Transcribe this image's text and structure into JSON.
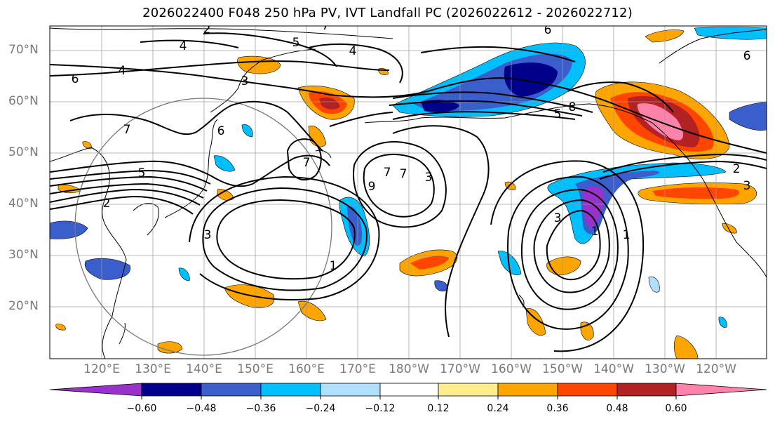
{
  "title": "2026022400 F048 250 hPa PV, IVT Landfall PC (2026022612 - 2026022712)",
  "lat_labels": [
    "70°N",
    "60°N",
    "50°N",
    "40°N",
    "30°N",
    "20°N"
  ],
  "lon_labels": [
    "120°E",
    "130°E",
    "140°E",
    "150°E",
    "160°E",
    "170°E",
    "180°W",
    "170°W",
    "160°W",
    "150°W",
    "140°W",
    "130°W",
    "120°W"
  ],
  "contour_labels": [
    "7",
    "4",
    "5",
    "4",
    "6",
    "4",
    "3",
    "7",
    "6",
    "7",
    "5",
    "2",
    "3",
    "1",
    "7",
    "9",
    "7",
    "3",
    "3",
    "1",
    "1",
    "6",
    "5",
    "8",
    "6",
    "2",
    "2",
    "3"
  ],
  "colorbar": {
    "ticks": [
      "−0.60",
      "−0.48",
      "−0.36",
      "−0.24",
      "−0.12",
      "0.12",
      "0.24",
      "0.36",
      "0.48",
      "0.60"
    ],
    "colors": [
      "#9932cc",
      "#00008b",
      "#3a5fcd",
      "#00bfff",
      "#b0e0ff",
      "#ffffff",
      "#ffec8b",
      "#ffa500",
      "#ff4500",
      "#b22222",
      "#ff82ab"
    ]
  },
  "shading_colors": {
    "pos_weak": "#ffec8b",
    "pos_mod": "#ffa500",
    "pos_strong": "#ff4500",
    "pos_vstrong": "#b22222",
    "pos_max": "#ff82ab",
    "neg_weak": "#b0e0ff",
    "neg_mod": "#00bfff",
    "neg_strong": "#3a5fcd",
    "neg_vstrong": "#00008b",
    "neg_max": "#9932cc"
  }
}
